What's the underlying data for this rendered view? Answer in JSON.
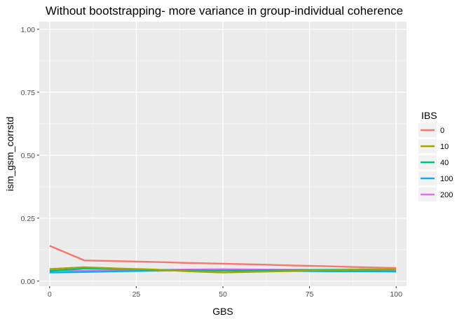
{
  "chart_data": {
    "type": "line",
    "title": "Without bootstrapping- more variance in group-individual coherence",
    "xlabel": "GBS",
    "ylabel": "ism_gsm_corrstd",
    "xlim": [
      -3,
      103
    ],
    "ylim": [
      -0.02,
      1.03
    ],
    "x_ticks": [
      0,
      25,
      50,
      75,
      100
    ],
    "x_tick_labels": [
      "0",
      "25",
      "50",
      "75",
      "100"
    ],
    "y_ticks": [
      0.0,
      0.25,
      0.5,
      0.75,
      1.0
    ],
    "y_tick_labels": [
      "0.00",
      "0.25",
      "0.50",
      "0.75",
      "1.00"
    ],
    "grid": true,
    "legend": {
      "title": "IBS",
      "position": "right"
    },
    "x": [
      0,
      10,
      20,
      30,
      40,
      50,
      60,
      70,
      80,
      90,
      100
    ],
    "series": [
      {
        "name": "0",
        "color": "#F8766D",
        "values": [
          0.14,
          0.082,
          0.079,
          0.076,
          0.072,
          0.069,
          0.066,
          0.062,
          0.059,
          0.055,
          0.052
        ]
      },
      {
        "name": "10",
        "color": "#A3A500",
        "values": [
          0.048,
          0.055,
          0.05,
          0.046,
          0.039,
          0.034,
          0.037,
          0.04,
          0.043,
          0.045,
          0.047
        ]
      },
      {
        "name": "40",
        "color": "#00BF7D",
        "values": [
          0.04,
          0.05,
          0.048,
          0.045,
          0.043,
          0.042,
          0.043,
          0.044,
          0.045,
          0.046,
          0.046
        ]
      },
      {
        "name": "100",
        "color": "#00B0F6",
        "values": [
          0.034,
          0.036,
          0.039,
          0.041,
          0.043,
          0.042,
          0.041,
          0.04,
          0.039,
          0.039,
          0.038
        ]
      },
      {
        "name": "200",
        "color": "#E76BF3",
        "values": [
          0.043,
          0.041,
          0.042,
          0.044,
          0.046,
          0.047,
          0.046,
          0.045,
          0.044,
          0.043,
          0.042
        ]
      }
    ]
  }
}
